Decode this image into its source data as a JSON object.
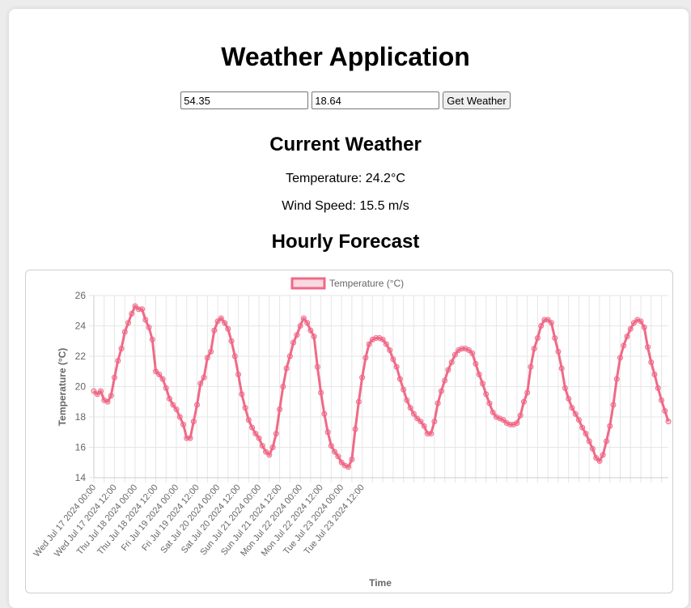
{
  "app": {
    "title": "Weather Application",
    "lat_value": "54.35",
    "lon_value": "18.64",
    "button_label": "Get Weather"
  },
  "current": {
    "heading": "Current Weather",
    "temperature_text": "Temperature: 24.2°C",
    "wind_text": "Wind Speed: 15.5 m/s"
  },
  "forecast": {
    "heading": "Hourly Forecast"
  },
  "colors": {
    "line": "#f06987",
    "fill": "rgba(240,105,135,0.25)",
    "grid": "#e6e6e6",
    "tick_text": "#666666"
  },
  "chart_data": {
    "type": "line",
    "legend": "Temperature (°C)",
    "legend_position": "top",
    "xlabel": "Time",
    "ylabel": "Temperature (°C)",
    "ylim": [
      14,
      26
    ],
    "yticks": [
      14,
      16,
      18,
      20,
      22,
      24,
      26
    ],
    "grid": true,
    "x_start": "Wed Jul 17 2024 00:00",
    "x_step_hours": 2,
    "x_tick_labels": [
      "Wed Jul 17 2024 00:00",
      "Wed Jul 17 2024 12:00",
      "Thu Jul 18 2024 00:00",
      "Thu Jul 18 2024 12:00",
      "Fri Jul 19 2024 00:00",
      "Fri Jul 19 2024 12:00",
      "Sat Jul 20 2024 00:00",
      "Sat Jul 20 2024 12:00",
      "Sun Jul 21 2024 00:00",
      "Sun Jul 21 2024 12:00",
      "Mon Jul 22 2024 00:00",
      "Mon Jul 22 2024 12:00",
      "Tue Jul 23 2024 00:00",
      "Tue Jul 23 2024 12:00"
    ],
    "series": [
      {
        "name": "Temperature (°C)",
        "values": [
          19.7,
          19.5,
          19.7,
          19.1,
          19.0,
          19.4,
          20.6,
          21.7,
          22.5,
          23.6,
          24.2,
          24.8,
          25.3,
          25.1,
          25.1,
          24.4,
          23.9,
          23.1,
          21.0,
          20.8,
          20.5,
          19.9,
          19.2,
          18.8,
          18.5,
          18.0,
          17.5,
          16.6,
          16.6,
          17.7,
          18.8,
          20.2,
          20.6,
          21.9,
          22.3,
          23.7,
          24.3,
          24.5,
          24.2,
          23.8,
          23.0,
          22.0,
          20.8,
          19.5,
          18.6,
          17.8,
          17.3,
          16.9,
          16.6,
          16.1,
          15.7,
          15.5,
          16.0,
          16.9,
          18.5,
          20.0,
          21.2,
          22.0,
          22.9,
          23.4,
          24.0,
          24.5,
          24.2,
          23.7,
          23.3,
          21.3,
          19.6,
          18.2,
          17.0,
          16.1,
          15.7,
          15.4,
          15.0,
          14.8,
          14.7,
          15.2,
          17.2,
          19.0,
          20.6,
          21.9,
          22.8,
          23.1,
          23.2,
          23.2,
          23.1,
          22.8,
          22.4,
          21.8,
          21.3,
          20.5,
          19.8,
          19.1,
          18.6,
          18.2,
          17.9,
          17.7,
          17.4,
          16.9,
          16.9,
          17.7,
          18.9,
          19.7,
          20.4,
          21.1,
          21.6,
          22.1,
          22.4,
          22.5,
          22.5,
          22.4,
          22.2,
          21.5,
          20.8,
          20.2,
          19.5,
          18.9,
          18.3,
          18.0,
          17.9,
          17.8,
          17.6,
          17.5,
          17.5,
          17.6,
          18.1,
          19.0,
          19.6,
          21.3,
          22.5,
          23.2,
          24.0,
          24.4,
          24.4,
          24.2,
          23.2,
          22.3,
          21.2,
          19.9,
          19.2,
          18.6,
          18.2,
          17.8,
          17.3,
          16.9,
          16.4,
          15.9,
          15.3,
          15.1,
          15.5,
          16.4,
          17.4,
          18.8,
          20.5,
          21.9,
          22.7,
          23.3,
          23.8,
          24.2,
          24.4,
          24.3,
          23.9,
          22.6,
          21.6,
          20.8,
          19.9,
          19.1,
          18.4,
          17.7
        ]
      }
    ]
  }
}
